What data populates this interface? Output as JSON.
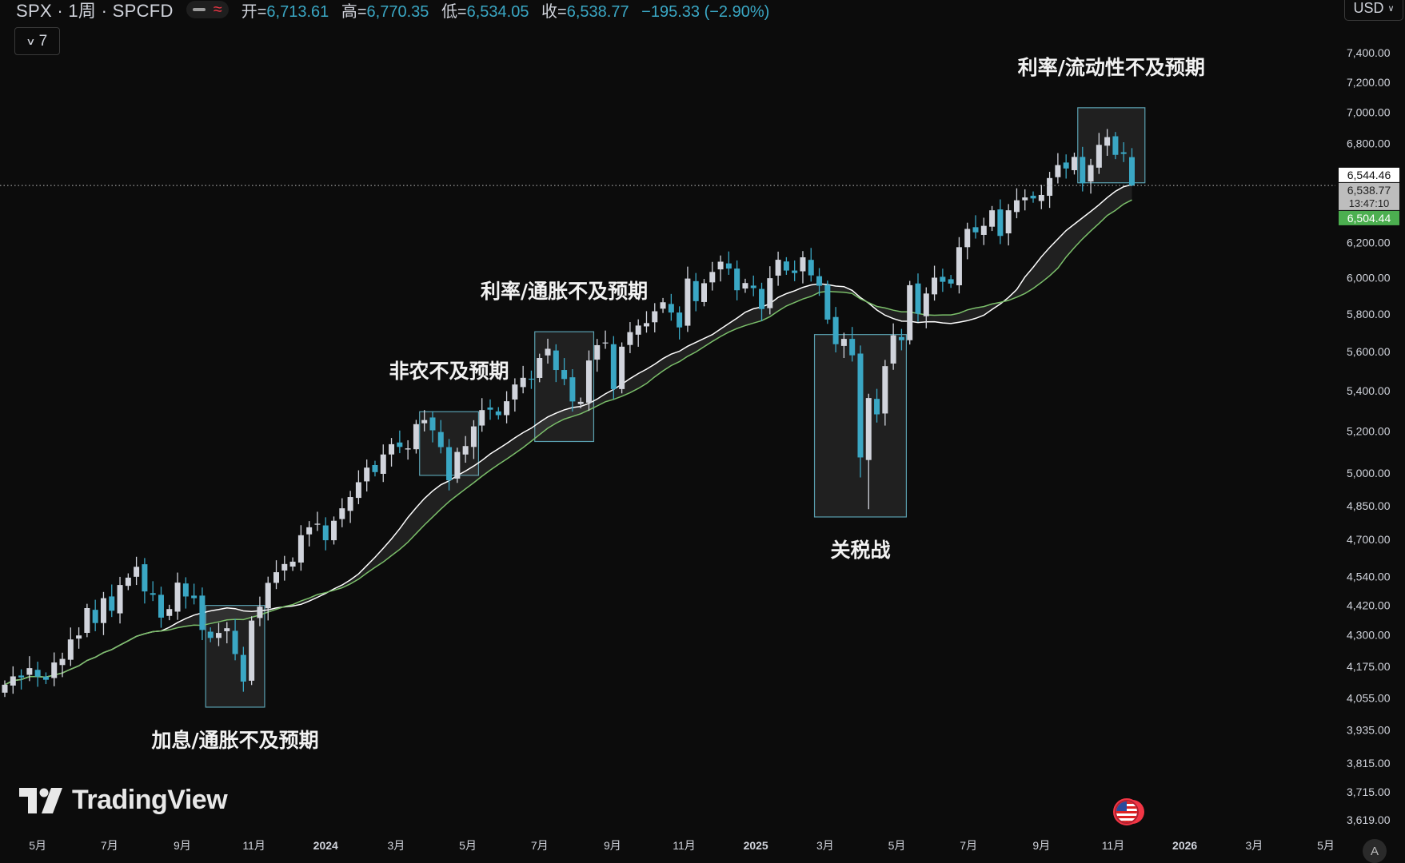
{
  "header": {
    "symbol": "SPX · 1周 · SPCFD",
    "open_label": "开=",
    "open": "6,713.61",
    "high_label": "高=",
    "high": "6,770.35",
    "low_label": "低=",
    "low": "6,534.05",
    "close_label": "收=",
    "close": "6,538.77",
    "change": "−195.33 (−2.90%)",
    "currency": "USD",
    "indicator_count": "7"
  },
  "branding": {
    "name": "TradingView"
  },
  "auto_label": "A",
  "colors": {
    "up": "#d1d4dc",
    "down": "#3aa7c4",
    "ma_fast": "#ffffff",
    "ma_slow": "#7bbf6a",
    "background": "#0c0c0c"
  },
  "price_labels": {
    "last_close": "6,544.46",
    "current": "6,538.77",
    "countdown": "13:47:10",
    "ma": "6,504.44"
  },
  "chart_data": {
    "type": "candlestick",
    "interval": "1周",
    "y_axis": {
      "scale": "log",
      "range": [
        3560,
        7700
      ],
      "ticks": [
        "7,400.00",
        "7,200.00",
        "7,000.00",
        "6,800.00",
        "6,200.00",
        "6,000.00",
        "5,800.00",
        "5,600.00",
        "5,400.00",
        "5,200.00",
        "5,000.00",
        "4,850.00",
        "4,700.00",
        "4,540.00",
        "4,420.00",
        "4,300.00",
        "4,175.00",
        "4,055.00",
        "3,935.00",
        "3,815.00",
        "3,715.00",
        "3,619.00"
      ]
    },
    "x_axis": {
      "ticks": [
        {
          "label": "5月",
          "date": "2023-05-01",
          "bold": false
        },
        {
          "label": "7月",
          "date": "2023-07-01",
          "bold": false
        },
        {
          "label": "9月",
          "date": "2023-09-01",
          "bold": false
        },
        {
          "label": "11月",
          "date": "2023-11-01",
          "bold": false
        },
        {
          "label": "2024",
          "date": "2024-01-01",
          "bold": true
        },
        {
          "label": "3月",
          "date": "2024-03-01",
          "bold": false
        },
        {
          "label": "5月",
          "date": "2024-05-01",
          "bold": false
        },
        {
          "label": "7月",
          "date": "2024-07-01",
          "bold": false
        },
        {
          "label": "9月",
          "date": "2024-09-01",
          "bold": false
        },
        {
          "label": "11月",
          "date": "2024-11-01",
          "bold": false
        },
        {
          "label": "2025",
          "date": "2025-01-01",
          "bold": true
        },
        {
          "label": "3月",
          "date": "2025-03-01",
          "bold": false
        },
        {
          "label": "5月",
          "date": "2025-05-01",
          "bold": false
        },
        {
          "label": "7月",
          "date": "2025-07-01",
          "bold": false
        },
        {
          "label": "9月",
          "date": "2025-09-01",
          "bold": false
        },
        {
          "label": "11月",
          "date": "2025-11-01",
          "bold": false
        },
        {
          "label": "2026",
          "date": "2026-01-01",
          "bold": true
        },
        {
          "label": "3月",
          "date": "2026-03-01",
          "bold": false
        },
        {
          "label": "5月",
          "date": "2026-05-01",
          "bold": false
        }
      ]
    },
    "closes": [
      {
        "date": "2023-04-03",
        "close": 4105
      },
      {
        "date": "2023-04-10",
        "close": 4137
      },
      {
        "date": "2023-04-17",
        "close": 4133
      },
      {
        "date": "2023-04-24",
        "close": 4169
      },
      {
        "date": "2023-05-01",
        "close": 4136
      },
      {
        "date": "2023-05-08",
        "close": 4124
      },
      {
        "date": "2023-05-15",
        "close": 4191
      },
      {
        "date": "2023-05-22",
        "close": 4205
      },
      {
        "date": "2023-05-29",
        "close": 4282
      },
      {
        "date": "2023-06-05",
        "close": 4298
      },
      {
        "date": "2023-06-12",
        "close": 4409
      },
      {
        "date": "2023-06-19",
        "close": 4348
      },
      {
        "date": "2023-06-26",
        "close": 4450
      },
      {
        "date": "2023-07-03",
        "close": 4398
      },
      {
        "date": "2023-07-10",
        "close": 4505
      },
      {
        "date": "2023-07-17",
        "close": 4536
      },
      {
        "date": "2023-07-24",
        "close": 4582
      },
      {
        "date": "2023-07-31",
        "close": 4478
      },
      {
        "date": "2023-08-07",
        "close": 4464
      },
      {
        "date": "2023-08-14",
        "close": 4370
      },
      {
        "date": "2023-08-21",
        "close": 4405
      },
      {
        "date": "2023-08-28",
        "close": 4515
      },
      {
        "date": "2023-09-04",
        "close": 4457
      },
      {
        "date": "2023-09-11",
        "close": 4450
      },
      {
        "date": "2023-09-18",
        "close": 4320
      },
      {
        "date": "2023-09-25",
        "close": 4288
      },
      {
        "date": "2023-10-02",
        "close": 4308
      },
      {
        "date": "2023-10-09",
        "close": 4327
      },
      {
        "date": "2023-10-16",
        "close": 4224
      },
      {
        "date": "2023-10-23",
        "close": 4117
      },
      {
        "date": "2023-10-30",
        "close": 4358
      },
      {
        "date": "2023-11-06",
        "close": 4415
      },
      {
        "date": "2023-11-13",
        "close": 4514
      },
      {
        "date": "2023-11-20",
        "close": 4559
      },
      {
        "date": "2023-11-27",
        "close": 4594
      },
      {
        "date": "2023-12-04",
        "close": 4604
      },
      {
        "date": "2023-12-11",
        "close": 4719
      },
      {
        "date": "2023-12-18",
        "close": 4754
      },
      {
        "date": "2023-12-25",
        "close": 4770
      },
      {
        "date": "2024-01-01",
        "close": 4697
      },
      {
        "date": "2024-01-08",
        "close": 4783
      },
      {
        "date": "2024-01-15",
        "close": 4839
      },
      {
        "date": "2024-01-22",
        "close": 4890
      },
      {
        "date": "2024-01-29",
        "close": 4958
      },
      {
        "date": "2024-02-05",
        "close": 5026
      },
      {
        "date": "2024-02-12",
        "close": 5005
      },
      {
        "date": "2024-02-19",
        "close": 5088
      },
      {
        "date": "2024-02-26",
        "close": 5137
      },
      {
        "date": "2024-03-04",
        "close": 5124
      },
      {
        "date": "2024-03-11",
        "close": 5117
      },
      {
        "date": "2024-03-18",
        "close": 5234
      },
      {
        "date": "2024-03-25",
        "close": 5254
      },
      {
        "date": "2024-04-01",
        "close": 5204
      },
      {
        "date": "2024-04-08",
        "close": 5123
      },
      {
        "date": "2024-04-15",
        "close": 4967
      },
      {
        "date": "2024-04-22",
        "close": 5100
      },
      {
        "date": "2024-04-29",
        "close": 5128
      },
      {
        "date": "2024-05-06",
        "close": 5223
      },
      {
        "date": "2024-05-13",
        "close": 5303
      },
      {
        "date": "2024-05-20",
        "close": 5305
      },
      {
        "date": "2024-05-27",
        "close": 5278
      },
      {
        "date": "2024-06-03",
        "close": 5347
      },
      {
        "date": "2024-06-10",
        "close": 5431
      },
      {
        "date": "2024-06-17",
        "close": 5465
      },
      {
        "date": "2024-06-24",
        "close": 5460
      },
      {
        "date": "2024-07-01",
        "close": 5567
      },
      {
        "date": "2024-07-08",
        "close": 5615
      },
      {
        "date": "2024-07-15",
        "close": 5505
      },
      {
        "date": "2024-07-22",
        "close": 5459
      },
      {
        "date": "2024-07-29",
        "close": 5346
      },
      {
        "date": "2024-08-05",
        "close": 5344
      },
      {
        "date": "2024-08-12",
        "close": 5554
      },
      {
        "date": "2024-08-19",
        "close": 5634
      },
      {
        "date": "2024-08-26",
        "close": 5648
      },
      {
        "date": "2024-09-02",
        "close": 5408
      },
      {
        "date": "2024-09-09",
        "close": 5626
      },
      {
        "date": "2024-09-16",
        "close": 5703
      },
      {
        "date": "2024-09-23",
        "close": 5738
      },
      {
        "date": "2024-09-30",
        "close": 5751
      },
      {
        "date": "2024-10-07",
        "close": 5815
      },
      {
        "date": "2024-10-14",
        "close": 5864
      },
      {
        "date": "2024-10-21",
        "close": 5808
      },
      {
        "date": "2024-10-28",
        "close": 5728
      },
      {
        "date": "2024-11-04",
        "close": 5995
      },
      {
        "date": "2024-11-11",
        "close": 5870
      },
      {
        "date": "2024-11-18",
        "close": 5969
      },
      {
        "date": "2024-11-25",
        "close": 6032
      },
      {
        "date": "2024-12-02",
        "close": 6090
      },
      {
        "date": "2024-12-09",
        "close": 6051
      },
      {
        "date": "2024-12-16",
        "close": 5930
      },
      {
        "date": "2024-12-23",
        "close": 5970
      },
      {
        "date": "2024-12-30",
        "close": 5942
      },
      {
        "date": "2025-01-06",
        "close": 5827
      },
      {
        "date": "2025-01-13",
        "close": 5997
      },
      {
        "date": "2025-01-20",
        "close": 6101
      },
      {
        "date": "2025-01-27",
        "close": 6040
      },
      {
        "date": "2025-02-03",
        "close": 6026
      },
      {
        "date": "2025-02-10",
        "close": 6115
      },
      {
        "date": "2025-02-17",
        "close": 6013
      },
      {
        "date": "2025-02-24",
        "close": 5955
      },
      {
        "date": "2025-03-03",
        "close": 5770
      },
      {
        "date": "2025-03-10",
        "close": 5639
      },
      {
        "date": "2025-03-17",
        "close": 5667
      },
      {
        "date": "2025-03-24",
        "close": 5581
      },
      {
        "date": "2025-03-31",
        "close": 5074
      },
      {
        "date": "2025-04-07",
        "close": 5363
      },
      {
        "date": "2025-04-14",
        "close": 5282
      },
      {
        "date": "2025-04-21",
        "close": 5525
      },
      {
        "date": "2025-04-28",
        "close": 5686
      },
      {
        "date": "2025-05-05",
        "close": 5660
      },
      {
        "date": "2025-05-12",
        "close": 5958
      },
      {
        "date": "2025-05-19",
        "close": 5802
      },
      {
        "date": "2025-05-26",
        "close": 5912
      },
      {
        "date": "2025-06-02",
        "close": 6000
      },
      {
        "date": "2025-06-09",
        "close": 5977
      },
      {
        "date": "2025-06-16",
        "close": 5967
      },
      {
        "date": "2025-06-23",
        "close": 6173
      },
      {
        "date": "2025-06-30",
        "close": 6279
      },
      {
        "date": "2025-07-07",
        "close": 6259
      },
      {
        "date": "2025-07-14",
        "close": 6297
      },
      {
        "date": "2025-07-21",
        "close": 6389
      },
      {
        "date": "2025-07-28",
        "close": 6238
      },
      {
        "date": "2025-08-04",
        "close": 6389
      },
      {
        "date": "2025-08-11",
        "close": 6449
      },
      {
        "date": "2025-08-18",
        "close": 6466
      },
      {
        "date": "2025-08-25",
        "close": 6460
      },
      {
        "date": "2025-09-01",
        "close": 6481
      },
      {
        "date": "2025-09-08",
        "close": 6584
      },
      {
        "date": "2025-09-15",
        "close": 6664
      },
      {
        "date": "2025-09-22",
        "close": 6643
      },
      {
        "date": "2025-09-29",
        "close": 6715
      },
      {
        "date": "2025-10-06",
        "close": 6552
      },
      {
        "date": "2025-10-13",
        "close": 6664
      },
      {
        "date": "2025-10-20",
        "close": 6791
      },
      {
        "date": "2025-10-27",
        "close": 6840
      },
      {
        "date": "2025-11-03",
        "close": 6728
      },
      {
        "date": "2025-11-10",
        "close": 6734
      },
      {
        "date": "2025-11-17",
        "close": 6538.77
      }
    ],
    "moving_averages": [
      {
        "color": "#ffffff",
        "period": 20
      },
      {
        "color": "#7bbf6a",
        "period": 25
      }
    ],
    "annotations": [
      {
        "text": "加息/通胀不及预期",
        "from": "2023-09-25",
        "to": "2023-11-06",
        "high": 4420,
        "low": 4020,
        "label_pos": "below"
      },
      {
        "text": "非农不及预期",
        "from": "2024-03-25",
        "to": "2024-05-06",
        "high": 5295,
        "low": 4990,
        "label_pos": "above"
      },
      {
        "text": "利率/通胀不及预期",
        "from": "2024-07-01",
        "to": "2024-08-12",
        "high": 5705,
        "low": 5150,
        "label_pos": "above"
      },
      {
        "text": "关税战",
        "from": "2025-02-24",
        "to": "2025-05-05",
        "high": 5690,
        "low": 4800,
        "label_pos": "below"
      },
      {
        "text": "利率/流动性不及预期",
        "from": "2025-10-06",
        "to": "2025-11-24",
        "high": 7030,
        "low": 6555,
        "label_pos": "above"
      }
    ]
  }
}
